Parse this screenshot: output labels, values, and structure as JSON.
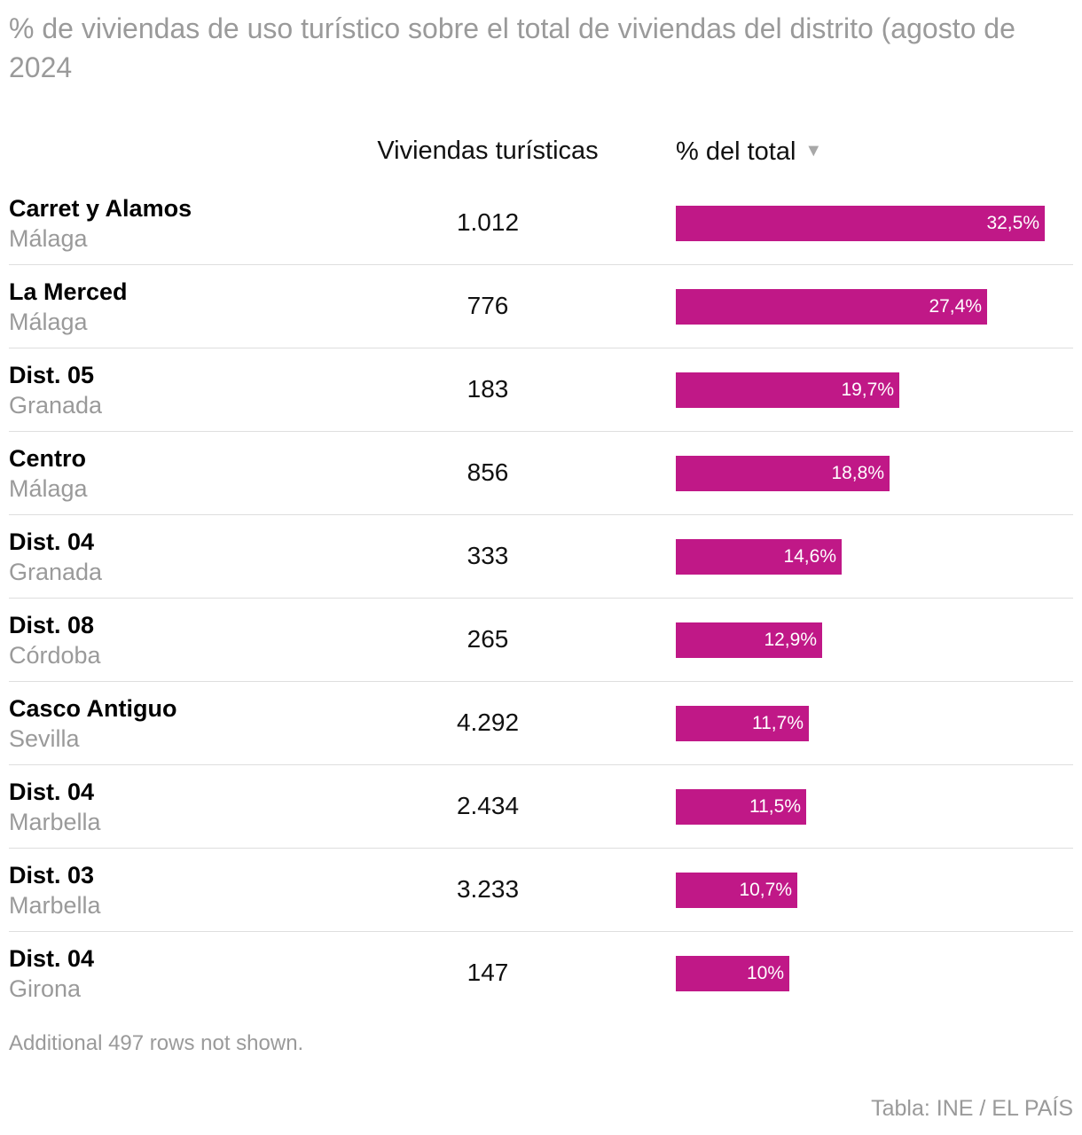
{
  "title": "% de viviendas de uso turístico sobre el total de viviendas del distrito (agosto de 2024",
  "columns": {
    "count_header": "Viviendas turísticas",
    "pct_header": "% del total",
    "sort_icon": "sort-descending-triangle-icon"
  },
  "chart_data": {
    "type": "table",
    "title": "% de viviendas de uso turístico sobre el total de viviendas del distrito (agosto de 2024",
    "bar_color": "#c01887",
    "max_value": 32.5,
    "rows": [
      {
        "district": "Carret y Alamos",
        "city": "Málaga",
        "count": "1.012",
        "pct": 32.5,
        "pct_label": "32,5%"
      },
      {
        "district": "La Merced",
        "city": "Málaga",
        "count": "776",
        "pct": 27.4,
        "pct_label": "27,4%"
      },
      {
        "district": "Dist. 05",
        "city": "Granada",
        "count": "183",
        "pct": 19.7,
        "pct_label": "19,7%"
      },
      {
        "district": "Centro",
        "city": "Málaga",
        "count": "856",
        "pct": 18.8,
        "pct_label": "18,8%"
      },
      {
        "district": "Dist. 04",
        "city": "Granada",
        "count": "333",
        "pct": 14.6,
        "pct_label": "14,6%"
      },
      {
        "district": "Dist. 08",
        "city": "Córdoba",
        "count": "265",
        "pct": 12.9,
        "pct_label": "12,9%"
      },
      {
        "district": "Casco Antiguo",
        "city": "Sevilla",
        "count": "4.292",
        "pct": 11.7,
        "pct_label": "11,7%"
      },
      {
        "district": "Dist. 04",
        "city": "Marbella",
        "count": "2.434",
        "pct": 11.5,
        "pct_label": "11,5%"
      },
      {
        "district": "Dist. 03",
        "city": "Marbella",
        "count": "3.233",
        "pct": 10.7,
        "pct_label": "10,7%"
      },
      {
        "district": "Dist. 04",
        "city": "Girona",
        "count": "147",
        "pct": 10,
        "pct_label": "10%"
      }
    ]
  },
  "footer": {
    "note": "Additional 497 rows not shown.",
    "source": "Tabla: INE / EL PAÍS"
  }
}
